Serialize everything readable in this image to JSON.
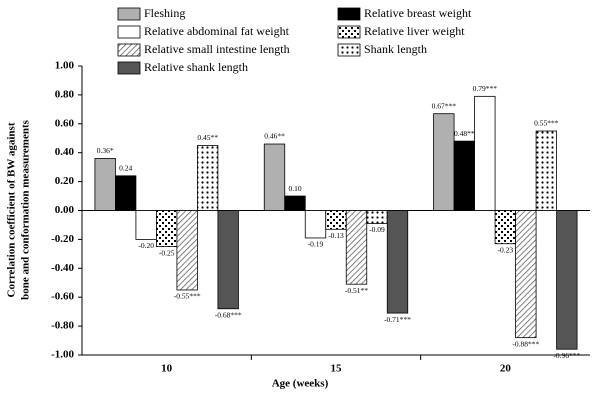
{
  "chart_data": {
    "type": "bar",
    "y_label": [
      "Correlation coefficient of BW against",
      "bone and conformation measurements"
    ],
    "x_label": "Age (weeks)",
    "categories": [
      "10",
      "15",
      "20"
    ],
    "ylim": [
      -1,
      1
    ],
    "yticks": [
      {
        "value": 1,
        "label": "1.00"
      },
      {
        "value": 0.8,
        "label": "0.80"
      },
      {
        "value": 0.6,
        "label": "0.60"
      },
      {
        "value": 0.4,
        "label": "0.40"
      },
      {
        "value": 0.2,
        "label": "0.20"
      },
      {
        "value": 0,
        "label": "0.00"
      },
      {
        "value": -0.2,
        "label": "-0.20"
      },
      {
        "value": -0.4,
        "label": "-0.40"
      },
      {
        "value": -0.6,
        "label": "-0.60"
      },
      {
        "value": -0.8,
        "label": "-0.80"
      },
      {
        "value": -1,
        "label": "-1.00"
      }
    ],
    "legend": "top",
    "series": [
      {
        "name": "Fleshing",
        "color": "#b0b0b0",
        "pattern": "solid",
        "values": [
          0.36,
          0.46,
          0.67
        ],
        "value_labels": [
          "0.36*",
          "0.46**",
          "0.67***"
        ]
      },
      {
        "name": "Relative breast weight",
        "color": "#000000",
        "pattern": "solid",
        "values": [
          0.24,
          0.1,
          0.48
        ],
        "value_labels": [
          "0.24",
          "0.10",
          "0.48**"
        ]
      },
      {
        "name": "Relative abdominal fat weight",
        "color": "#ffffff",
        "pattern": "solid",
        "values": [
          -0.2,
          -0.19,
          0.79
        ],
        "value_labels": [
          "-0.20",
          "-0.19",
          "0.79***"
        ]
      },
      {
        "name": "Relative liver weight",
        "color": "#ffffff",
        "pattern": "crosshatch",
        "values": [
          -0.25,
          -0.13,
          -0.23
        ],
        "value_labels": [
          "-0.25",
          "-0.13",
          "-0.23"
        ]
      },
      {
        "name": "Relative small intestine length",
        "color": "#ffffff",
        "pattern": "diagonal",
        "values": [
          -0.55,
          -0.51,
          -0.88
        ],
        "value_labels": [
          "-0.55***",
          "-0.51**",
          "-0.88***"
        ]
      },
      {
        "name": "Shank length",
        "color": "#ffffff",
        "pattern": "dots",
        "values": [
          0.45,
          -0.09,
          0.55
        ],
        "value_labels": [
          "0.45**",
          "-0.09",
          "0.55***"
        ]
      },
      {
        "name": "Relative shank length",
        "color": "#555555",
        "pattern": "solid",
        "values": [
          -0.68,
          -0.71,
          -0.96
        ],
        "value_labels": [
          "-0.68***",
          "-0.71***",
          "-0.96***"
        ]
      }
    ]
  }
}
